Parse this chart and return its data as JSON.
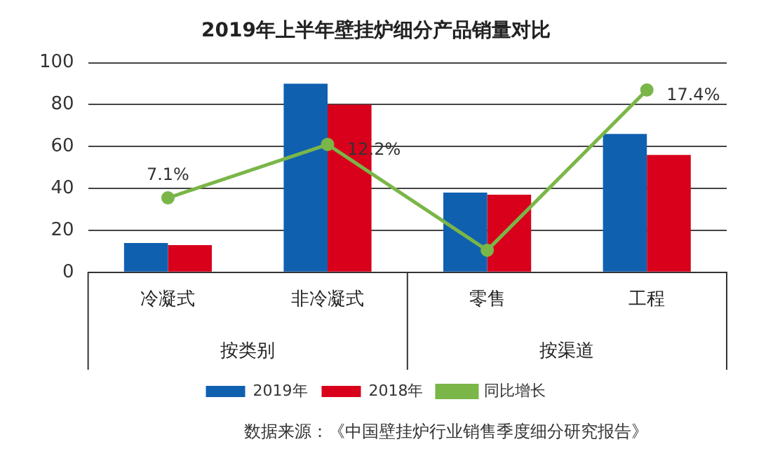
{
  "chart_data": {
    "type": "bar",
    "title": "2019年上半年壁挂炉细分产品销量对比",
    "categories": [
      "冷凝式",
      "非冷凝式",
      "零售",
      "工程"
    ],
    "series": [
      {
        "name": "2019年",
        "color": "#1060b0",
        "values": [
          14,
          90,
          38,
          66
        ]
      },
      {
        "name": "2018年",
        "color": "#d9001b",
        "values": [
          13,
          80,
          37,
          56
        ]
      },
      {
        "name": "同比增长",
        "type": "line",
        "axis": "y2",
        "color": "#7ab648",
        "values": [
          7.1,
          12.2,
          2.1,
          17.4
        ],
        "value_labels": [
          "7.1%",
          "12.2%",
          null,
          "17.4%"
        ],
        "marker": "circle"
      }
    ],
    "ylim": [
      0,
      100
    ],
    "yticks": [
      0,
      20,
      40,
      60,
      80,
      100
    ],
    "y2lim": [
      0,
      20
    ],
    "grid": "y",
    "legend": "bottom",
    "annotations": [
      "按类别",
      "按渠道",
      "数据来源：《中国壁挂炉行业销售季度细分研究报告》"
    ]
  }
}
